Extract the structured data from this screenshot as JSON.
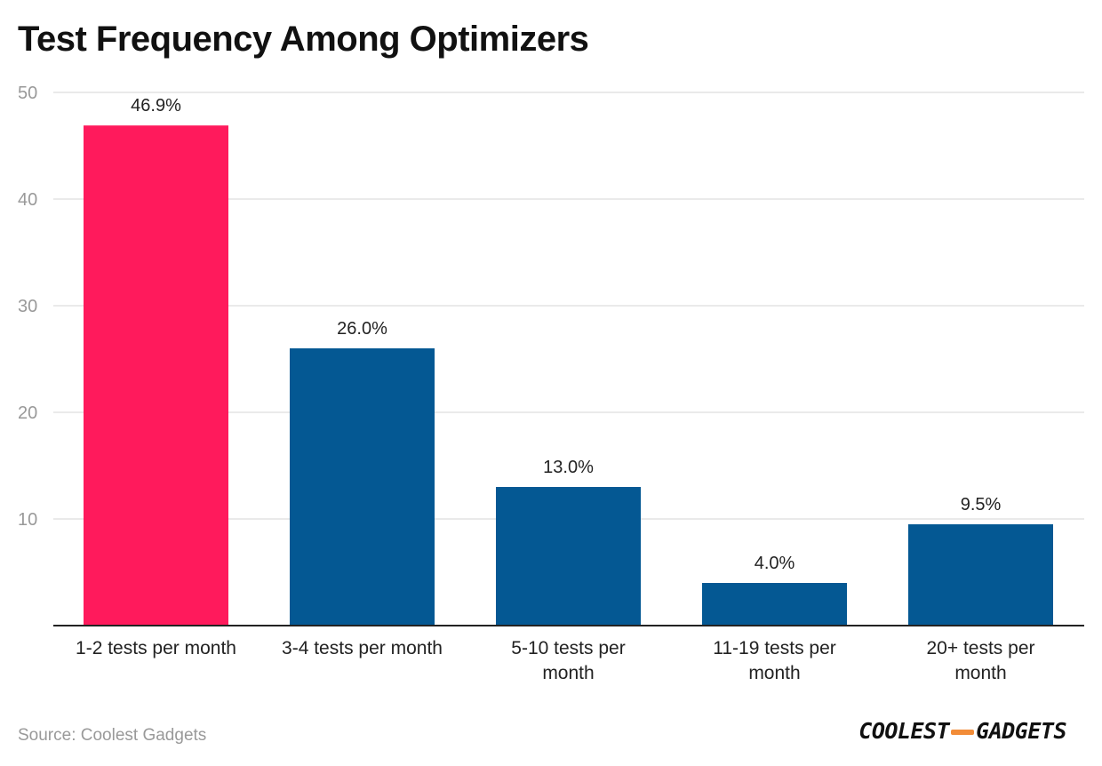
{
  "title": "Test Frequency Among Optimizers",
  "source_text": "Source: Coolest Gadgets",
  "brand": {
    "part1": "COOLEST",
    "part2": "GADGETS"
  },
  "colors": {
    "highlight": "#ff1a5c",
    "bar": "#045893",
    "grid": "#e3e3e3",
    "axis": "#222222",
    "brand_accent": "#f28c38"
  },
  "chart_data": {
    "type": "bar",
    "title": "Test Frequency Among Optimizers",
    "categories": [
      [
        "1-2 tests per month"
      ],
      [
        "3-4 tests per month"
      ],
      [
        "5-10 tests per",
        "month"
      ],
      [
        "11-19 tests per",
        "month"
      ],
      [
        "20+ tests per",
        "month"
      ]
    ],
    "values": [
      46.9,
      26.0,
      13.0,
      4.0,
      9.5
    ],
    "value_labels": [
      "46.9%",
      "26.0%",
      "13.0%",
      "4.0%",
      "9.5%"
    ],
    "highlight_index": 0,
    "yticks": [
      10,
      20,
      30,
      40,
      50
    ],
    "ylim": [
      0,
      50
    ],
    "xlabel": "",
    "ylabel": "",
    "grid": true,
    "legend": "none"
  }
}
